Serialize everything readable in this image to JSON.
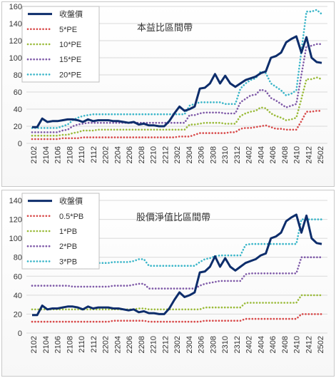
{
  "chart_data": [
    {
      "type": "line",
      "title": "本益比區間帶",
      "xlabel": "",
      "ylabel": "",
      "ylim": [
        0,
        160
      ],
      "yticks": [
        0,
        20,
        40,
        60,
        80,
        100,
        120,
        140,
        160
      ],
      "grid": "horizontal",
      "legend": "top-left",
      "x_tick_labels": [
        "2102",
        "2104",
        "2106",
        "2108",
        "2110",
        "2112",
        "2202",
        "2204",
        "2206",
        "2208",
        "2210",
        "2212",
        "2302",
        "2304",
        "2306",
        "2308",
        "2310",
        "2312",
        "2402",
        "2404",
        "2406",
        "2408",
        "2410",
        "2412",
        "2502"
      ],
      "series": [
        {
          "name": "收盤價",
          "color": "#0d2d6b",
          "style": "solid",
          "values": [
            19,
            19,
            29,
            25,
            26,
            26,
            27,
            28,
            28,
            27,
            25,
            28,
            26,
            27,
            27,
            27,
            26,
            26,
            25,
            24,
            25,
            22,
            23,
            21,
            21,
            20,
            20,
            26,
            35,
            43,
            38,
            40,
            43,
            64,
            65,
            70,
            81,
            70,
            79,
            70,
            66,
            70,
            74,
            76,
            78,
            82,
            84,
            100,
            102,
            106,
            118,
            122,
            125,
            106,
            124,
            100,
            95,
            94
          ]
        },
        {
          "name": "5*PE",
          "color": "#d84a4a",
          "style": "dotted",
          "values": [
            5,
            5,
            5,
            5,
            5,
            5,
            6,
            6,
            6,
            6,
            7,
            7,
            7,
            7,
            7,
            7,
            7,
            7,
            7,
            7,
            7,
            7,
            7,
            7,
            7,
            7,
            7,
            7,
            7,
            8,
            8,
            8,
            10,
            12,
            12,
            12,
            12,
            12,
            12,
            13,
            13,
            17,
            18,
            18,
            19,
            20,
            21,
            19,
            17,
            17,
            16,
            16,
            16,
            26,
            37,
            37,
            38,
            38
          ]
        },
        {
          "name": "10*PE",
          "color": "#9bbb3b",
          "style": "dotted",
          "values": [
            9,
            9,
            9,
            9,
            9,
            9,
            10,
            10,
            12,
            13,
            15,
            15,
            15,
            16,
            16,
            16,
            16,
            16,
            16,
            16,
            16,
            16,
            16,
            16,
            16,
            16,
            16,
            16,
            16,
            16,
            16,
            22,
            22,
            23,
            24,
            24,
            24,
            24,
            23,
            23,
            23,
            32,
            35,
            37,
            38,
            42,
            41,
            35,
            32,
            30,
            27,
            28,
            30,
            52,
            75,
            75,
            77,
            75
          ]
        },
        {
          "name": "15*PE",
          "color": "#7f5aa8",
          "style": "dotted",
          "values": [
            13,
            13,
            13,
            13,
            13,
            13,
            15,
            16,
            20,
            22,
            23,
            24,
            24,
            24,
            24,
            24,
            24,
            24,
            24,
            24,
            24,
            24,
            24,
            24,
            24,
            24,
            24,
            24,
            24,
            24,
            24,
            33,
            33,
            35,
            36,
            36,
            36,
            36,
            35,
            35,
            35,
            48,
            52,
            56,
            57,
            63,
            61,
            53,
            50,
            46,
            42,
            44,
            46,
            80,
            114,
            114,
            116,
            116
          ]
        },
        {
          "name": "20*PE",
          "color": "#3bb6c9",
          "style": "dotted",
          "values": [
            18,
            18,
            18,
            18,
            18,
            18,
            20,
            22,
            27,
            30,
            32,
            33,
            34,
            34,
            34,
            34,
            34,
            34,
            34,
            34,
            34,
            34,
            34,
            34,
            34,
            34,
            34,
            34,
            34,
            34,
            34,
            44,
            46,
            48,
            48,
            48,
            48,
            48,
            46,
            46,
            46,
            64,
            70,
            74,
            76,
            84,
            82,
            70,
            66,
            62,
            56,
            58,
            62,
            108,
            154,
            154,
            156,
            151
          ]
        }
      ]
    },
    {
      "type": "line",
      "title": "股價淨值比區間帶",
      "xlabel": "",
      "ylabel": "",
      "ylim": [
        0,
        140
      ],
      "yticks": [
        0,
        20,
        40,
        60,
        80,
        100,
        120,
        140
      ],
      "grid": "horizontal",
      "legend": "top-left",
      "x_tick_labels": [
        "2102",
        "2104",
        "2106",
        "2108",
        "2110",
        "2112",
        "2202",
        "2204",
        "2206",
        "2208",
        "2210",
        "2212",
        "2302",
        "2304",
        "2306",
        "2308",
        "2310",
        "2312",
        "2402",
        "2404",
        "2406",
        "2408",
        "2410",
        "2412",
        "2502"
      ],
      "series": [
        {
          "name": "收盤價",
          "color": "#0d2d6b",
          "style": "solid",
          "values": [
            19,
            19,
            29,
            25,
            26,
            26,
            27,
            28,
            28,
            27,
            25,
            28,
            26,
            27,
            27,
            27,
            26,
            26,
            25,
            24,
            25,
            22,
            23,
            21,
            21,
            20,
            20,
            26,
            35,
            43,
            38,
            40,
            43,
            64,
            65,
            70,
            81,
            70,
            79,
            70,
            66,
            70,
            74,
            76,
            78,
            82,
            84,
            100,
            102,
            106,
            118,
            122,
            125,
            106,
            124,
            100,
            95,
            94
          ]
        },
        {
          "name": "0.5*PB",
          "color": "#d84a4a",
          "style": "dotted",
          "values": [
            12,
            12,
            12,
            12,
            12,
            12,
            12,
            12,
            12,
            12,
            12,
            12,
            12,
            12,
            12,
            12,
            13,
            13,
            13,
            13,
            13,
            13,
            13,
            12,
            12,
            12,
            12,
            12,
            12,
            12,
            12,
            12,
            12,
            12,
            13,
            13,
            13,
            13,
            13,
            13,
            13,
            13,
            15,
            15,
            15,
            15,
            15,
            15,
            15,
            15,
            15,
            15,
            15,
            20,
            20,
            20,
            20,
            20
          ]
        },
        {
          "name": "1*PB",
          "color": "#9bbb3b",
          "style": "dotted",
          "values": [
            25,
            25,
            25,
            25,
            25,
            25,
            25,
            25,
            25,
            25,
            25,
            25,
            25,
            25,
            25,
            25,
            25,
            25,
            25,
            25,
            25,
            26,
            26,
            25,
            25,
            25,
            25,
            25,
            25,
            25,
            25,
            25,
            25,
            25,
            27,
            27,
            27,
            27,
            27,
            27,
            27,
            27,
            32,
            32,
            32,
            32,
            32,
            32,
            32,
            32,
            32,
            32,
            32,
            40,
            40,
            40,
            40,
            40
          ]
        },
        {
          "name": "2*PB",
          "color": "#7f5aa8",
          "style": "dotted",
          "values": [
            50,
            50,
            50,
            50,
            50,
            50,
            50,
            50,
            49,
            49,
            49,
            49,
            49,
            49,
            49,
            49,
            50,
            50,
            50,
            50,
            51,
            52,
            52,
            47,
            47,
            47,
            47,
            47,
            47,
            47,
            47,
            47,
            47,
            50,
            52,
            53,
            54,
            55,
            55,
            55,
            55,
            55,
            62,
            63,
            63,
            63,
            63,
            63,
            63,
            63,
            63,
            63,
            63,
            80,
            80,
            80,
            80,
            80
          ]
        },
        {
          "name": "3*PB",
          "color": "#3bb6c9",
          "style": "dotted",
          "values": [
            75,
            75,
            75,
            75,
            75,
            75,
            75,
            75,
            74,
            74,
            74,
            74,
            74,
            74,
            74,
            74,
            75,
            75,
            75,
            75,
            76,
            78,
            78,
            71,
            71,
            71,
            71,
            71,
            71,
            71,
            71,
            71,
            71,
            75,
            78,
            79,
            81,
            82,
            82,
            82,
            82,
            82,
            93,
            94,
            94,
            94,
            94,
            94,
            94,
            94,
            94,
            94,
            94,
            120,
            120,
            120,
            120,
            120
          ]
        }
      ]
    }
  ]
}
